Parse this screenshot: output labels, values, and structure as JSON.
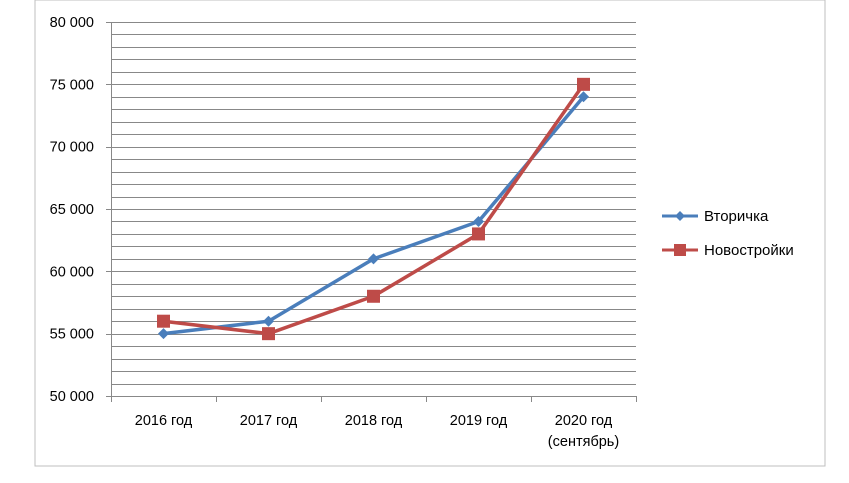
{
  "colors": {
    "series_1": "#4a7ebb",
    "series_2": "#be4b48",
    "grid": "#888888",
    "frame": "#bfbfbf"
  },
  "chart_data": {
    "type": "line",
    "title": "",
    "xlabel": "",
    "ylabel": "",
    "categories": [
      "2016 год",
      "2017 год",
      "2018 год",
      "2019 год",
      "2020 год (сентябрь)"
    ],
    "category_lines": [
      [
        "2016 год"
      ],
      [
        "2017 год"
      ],
      [
        "2018 год"
      ],
      [
        "2019 год"
      ],
      [
        "2020 год",
        "(сентябрь)"
      ]
    ],
    "ylim": [
      50000,
      80000
    ],
    "major_ticks": [
      50000,
      55000,
      60000,
      65000,
      70000,
      75000,
      80000
    ],
    "tick_labels": [
      "50 000",
      "55 000",
      "60 000",
      "65 000",
      "70 000",
      "75 000",
      "80 000"
    ],
    "minor_step": 1000,
    "grid": true,
    "legend_position": "right",
    "series": [
      {
        "name": "Вторичка",
        "marker": "diamond",
        "color": "#4a7ebb",
        "values": [
          55000,
          56000,
          61000,
          64000,
          74000
        ]
      },
      {
        "name": "Новостройки",
        "marker": "square",
        "color": "#be4b48",
        "values": [
          56000,
          55000,
          58000,
          63000,
          75000
        ]
      }
    ]
  }
}
